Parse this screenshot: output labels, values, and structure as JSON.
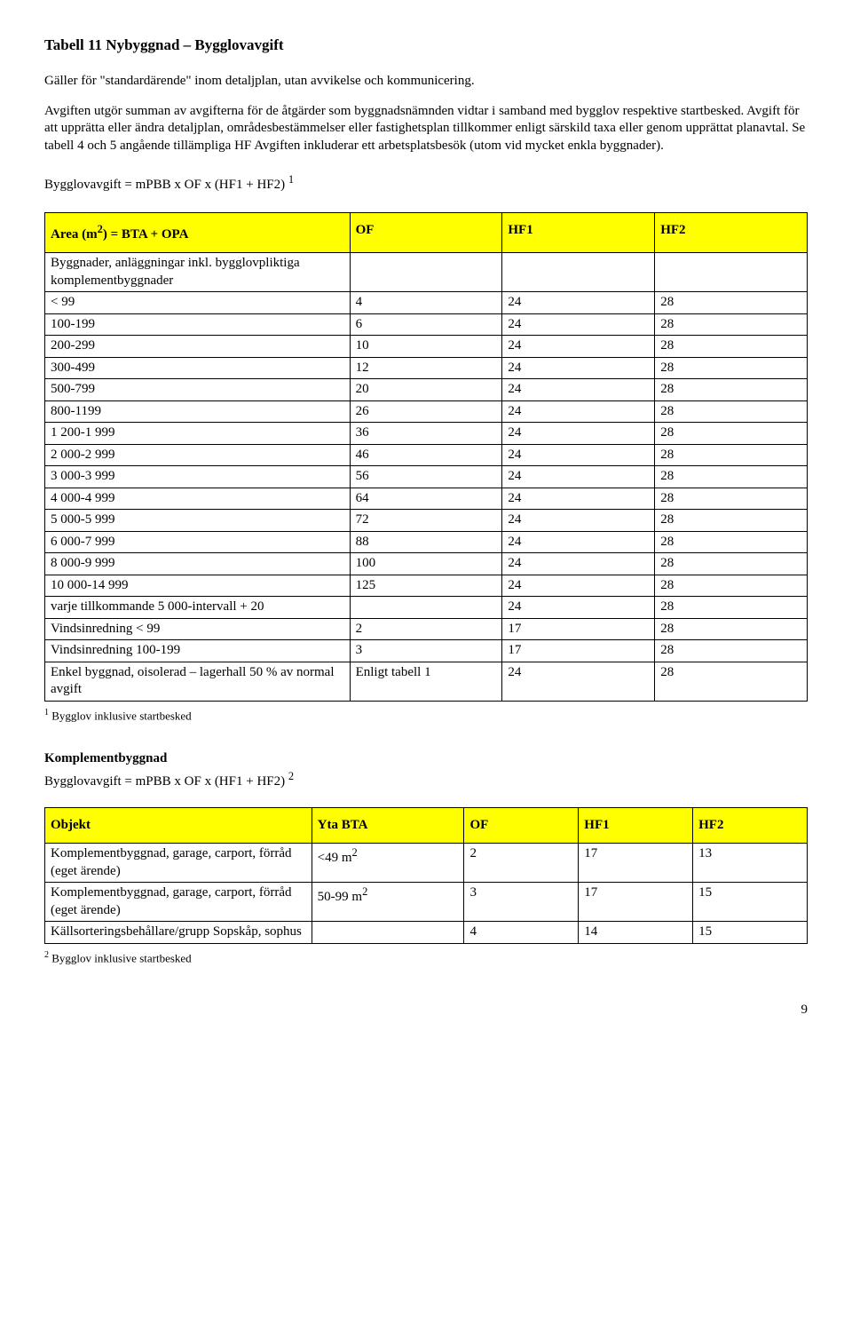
{
  "title": "Tabell 11 Nybyggnad – Bygglovavgift",
  "intro1": "Gäller för \"standardärende\" inom detaljplan, utan avvikelse och kommunicering.",
  "intro2": "Avgiften utgör summan av avgifterna för de åtgärder som byggnadsnämnden vidtar i samband med bygglov respektive startbesked. Avgift för att upprätta eller ändra detaljplan, områdesbestämmelser eller fastighetsplan tillkommer enligt särskild taxa eller genom upprättat planavtal. Se tabell 4 och 5 angående tillämpliga HF Avgiften inkluderar ett arbetsplatsbesök (utom vid mycket enkla byggnader).",
  "formula1_pre": "Bygglovavgift = mPBB x OF x (HF1 + HF2)",
  "formula1_sup": "1",
  "table1": {
    "header": {
      "c1": "Area (m",
      "c1_sup": "2",
      "c1_post": ") = BTA + OPA",
      "c2": "OF",
      "c3": "HF1",
      "c4": "HF2"
    },
    "section_label": "Byggnader, anläggningar inkl. bygglovpliktiga komplementbyggnader",
    "rows": [
      {
        "c1": "< 99",
        "c2": "4",
        "c3": "24",
        "c4": "28"
      },
      {
        "c1": "100-199",
        "c2": "6",
        "c3": "24",
        "c4": "28"
      },
      {
        "c1": "200-299",
        "c2": "10",
        "c3": "24",
        "c4": "28"
      },
      {
        "c1": "300-499",
        "c2": "12",
        "c3": "24",
        "c4": "28"
      },
      {
        "c1": "500-799",
        "c2": "20",
        "c3": "24",
        "c4": "28"
      },
      {
        "c1": "800-1199",
        "c2": "26",
        "c3": "24",
        "c4": "28"
      },
      {
        "c1": "1 200-1 999",
        "c2": "36",
        "c3": "24",
        "c4": "28"
      },
      {
        "c1": "2 000-2 999",
        "c2": "46",
        "c3": "24",
        "c4": "28"
      },
      {
        "c1": "3 000-3 999",
        "c2": "56",
        "c3": "24",
        "c4": "28"
      },
      {
        "c1": "4 000-4 999",
        "c2": "64",
        "c3": "24",
        "c4": "28"
      },
      {
        "c1": "5 000-5 999",
        "c2": "72",
        "c3": "24",
        "c4": "28"
      },
      {
        "c1": "6 000-7 999",
        "c2": "88",
        "c3": "24",
        "c4": "28"
      },
      {
        "c1": "8 000-9 999",
        "c2": "100",
        "c3": "24",
        "c4": "28"
      },
      {
        "c1": "10 000-14 999",
        "c2": "125",
        "c3": "24",
        "c4": "28"
      },
      {
        "c1": "varje tillkommande 5 000-intervall + 20",
        "c2": "",
        "c3": "24",
        "c4": "28"
      },
      {
        "c1": "Vindsinredning < 99",
        "c2": "2",
        "c3": "17",
        "c4": "28"
      },
      {
        "c1": "Vindsinredning 100-199",
        "c2": "3",
        "c3": "17",
        "c4": "28"
      },
      {
        "c1": "Enkel byggnad, oisolerad – lagerhall 50 % av normal avgift",
        "c2": "Enligt tabell 1",
        "c3": "24",
        "c4": "28"
      }
    ]
  },
  "footnote1_sup": "1",
  "footnote1": " Bygglov inklusive startbesked",
  "sub_heading": "Komplementbyggnad",
  "formula2_pre": "Bygglovavgift = mPBB x OF x (HF1 + HF2)",
  "formula2_sup": "2",
  "table2": {
    "header": {
      "c1": "Objekt",
      "c2": "Yta BTA",
      "c3": "OF",
      "c4": "HF1",
      "c5": "HF2"
    },
    "rows": [
      {
        "c1": "Komplementbyggnad, garage, carport, förråd (eget ärende)",
        "c2_pre": "<49 m",
        "c2_sup": "2",
        "c3": "2",
        "c4": "17",
        "c5": "13"
      },
      {
        "c1": "Komplementbyggnad, garage, carport, förråd (eget ärende)",
        "c2_pre": "50-99 m",
        "c2_sup": "2",
        "c3": "3",
        "c4": "17",
        "c5": "15"
      },
      {
        "c1": "Källsorteringsbehållare/grupp Sopskåp, sophus",
        "c2_pre": "",
        "c2_sup": "",
        "c3": "4",
        "c4": "14",
        "c5": "15"
      }
    ]
  },
  "footnote2_sup": "2",
  "footnote2": " Bygglov inklusive startbesked",
  "pagenum": "9"
}
